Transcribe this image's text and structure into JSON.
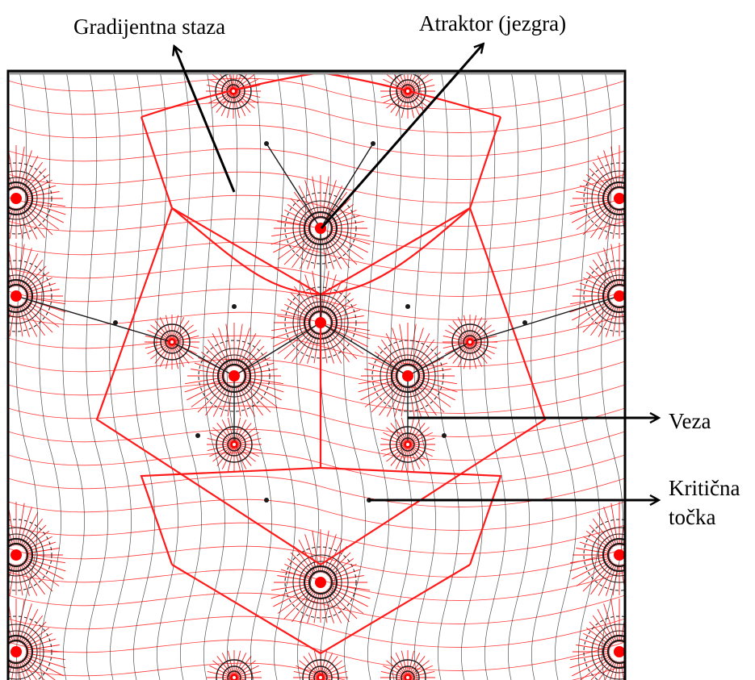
{
  "labels": {
    "gradient_path": "Gradijentna staza",
    "attractor": "Atraktor (jezgra)",
    "bond": "Veza",
    "critical_point_line1": "Kritična",
    "critical_point_line2": "točka"
  },
  "colors": {
    "gradient_lines": "#ff1a1a",
    "contour_lines": "#1a1a1a",
    "nucleus": "#ff0000",
    "frame": "#000000",
    "annotation_arrows": "#000000"
  }
}
